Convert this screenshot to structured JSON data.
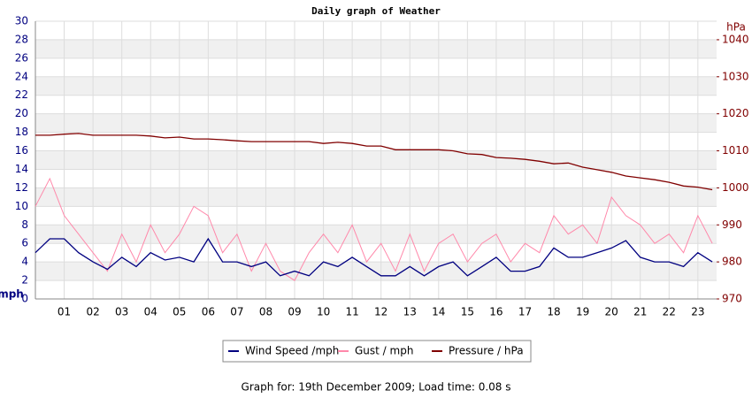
{
  "chart_data": {
    "type": "line",
    "title": "Daily graph of Weather",
    "ylabel": "mph",
    "y2label": "hPa",
    "caption": "Graph for: 19th December 2009; Load time: 0.08 s",
    "x": [
      0,
      0.5,
      1,
      1.5,
      2,
      2.5,
      3,
      3.5,
      4,
      4.5,
      5,
      5.5,
      6,
      6.5,
      7,
      7.5,
      8,
      8.5,
      9,
      9.5,
      10,
      10.5,
      11,
      11.5,
      12,
      12.5,
      13,
      13.5,
      14,
      14.5,
      15,
      15.5,
      16,
      16.5,
      17,
      17.5,
      18,
      18.5,
      19,
      19.5,
      20,
      20.5,
      21,
      21.5,
      22,
      22.5,
      23,
      23.5
    ],
    "xlim": [
      0,
      23.65
    ],
    "xticks": [
      {
        "value": 1,
        "label": "01"
      },
      {
        "value": 2,
        "label": "02"
      },
      {
        "value": 3,
        "label": "03"
      },
      {
        "value": 4,
        "label": "04"
      },
      {
        "value": 5,
        "label": "05"
      },
      {
        "value": 6,
        "label": "06"
      },
      {
        "value": 7,
        "label": "07"
      },
      {
        "value": 8,
        "label": "08"
      },
      {
        "value": 9,
        "label": "09"
      },
      10,
      11,
      12,
      13,
      14,
      15,
      16,
      17,
      18,
      19,
      20,
      21,
      22,
      23
    ],
    "ylim": [
      0,
      30
    ],
    "yticks": [
      0,
      2,
      4,
      6,
      8,
      10,
      12,
      14,
      16,
      18,
      20,
      22,
      24,
      26,
      28,
      30
    ],
    "y2lim": [
      970,
      1045
    ],
    "y2ticks": [
      970,
      980,
      990,
      1000,
      1010,
      1020,
      1030,
      1040
    ],
    "grid": true,
    "legend": "bottom",
    "series": [
      {
        "name": "Wind Speed /mph",
        "color": "#000080",
        "values": [
          5,
          6.5,
          6.5,
          5,
          4,
          3.2,
          4.5,
          3.5,
          5,
          4.2,
          4.5,
          4,
          6.5,
          4,
          4,
          3.5,
          4,
          2.5,
          3,
          2.5,
          4,
          3.5,
          4.5,
          3.5,
          2.5,
          2.5,
          3.5,
          2.5,
          3.5,
          4,
          2.5,
          3.5,
          4.5,
          3,
          3,
          3.5,
          5.5,
          4.5,
          4.5,
          5,
          5.5,
          6.3,
          4.5,
          4,
          4,
          3.5,
          5,
          4
        ]
      },
      {
        "name": "Gust / mph",
        "color": "#ff88aa",
        "values": [
          10,
          13,
          9,
          7,
          5,
          3,
          7,
          4,
          8,
          5,
          7,
          10,
          9,
          5,
          7,
          3,
          6,
          3,
          2,
          5,
          7,
          5,
          8,
          4,
          6,
          3,
          7,
          3,
          6,
          7,
          4,
          6,
          7,
          4,
          6,
          5,
          9,
          7,
          8,
          6,
          11,
          9,
          8,
          6,
          7,
          5,
          9,
          6
        ]
      },
      {
        "name": "Pressure / hPa",
        "color": "#800000",
        "axis": "y2",
        "values": [
          1014.2,
          1014.2,
          1014.5,
          1014.7,
          1014.2,
          1014.2,
          1014.2,
          1014.2,
          1014.0,
          1013.5,
          1013.7,
          1013.2,
          1013.2,
          1013.0,
          1012.7,
          1012.5,
          1012.5,
          1012.5,
          1012.5,
          1012.5,
          1012.0,
          1012.3,
          1012.0,
          1011.3,
          1011.3,
          1010.3,
          1010.3,
          1010.3,
          1010.3,
          1010.0,
          1009.2,
          1009.0,
          1008.2,
          1008.0,
          1007.7,
          1007.2,
          1006.5,
          1006.7,
          1005.6,
          1004.9,
          1004.2,
          1003.2,
          1002.7,
          1002.2,
          1001.5,
          1000.5,
          1000.2,
          999.5
        ]
      }
    ]
  }
}
